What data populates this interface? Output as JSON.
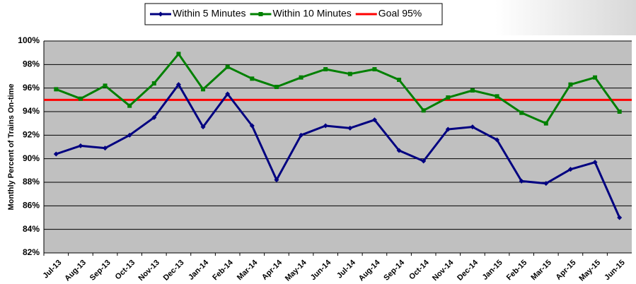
{
  "chart_data": {
    "type": "line",
    "y_label": "Monthly Percent of Trains On-time",
    "categories": [
      "Jul-13",
      "Aug-13",
      "Sep-13",
      "Oct-13",
      "Nov-13",
      "Dec-13",
      "Jan-14",
      "Feb-14",
      "Mar-14",
      "Apr-14",
      "May-14",
      "Jun-14",
      "Jul-14",
      "Aug-14",
      "Sep-14",
      "Oct-14",
      "Nov-14",
      "Dec-14",
      "Jan-15",
      "Feb-15",
      "Mar-15",
      "Apr-15",
      "May-15",
      "Jun-15"
    ],
    "series": [
      {
        "name": "Within 5 Minutes",
        "color": "#000080",
        "marker": "diamond",
        "values": [
          90.4,
          91.1,
          90.9,
          92.0,
          93.5,
          96.3,
          92.7,
          95.5,
          92.8,
          88.2,
          92.0,
          92.8,
          92.6,
          93.3,
          90.7,
          89.8,
          92.5,
          92.7,
          91.6,
          88.1,
          87.9,
          89.1,
          89.7,
          85.0
        ]
      },
      {
        "name": "Within 10 Minutes",
        "color": "#008000",
        "marker": "square",
        "values": [
          95.9,
          95.1,
          96.2,
          94.5,
          96.4,
          98.9,
          95.9,
          97.8,
          96.8,
          96.1,
          96.9,
          97.6,
          97.2,
          97.6,
          96.7,
          94.1,
          95.2,
          95.8,
          95.3,
          93.9,
          93.0,
          96.3,
          96.9,
          94.0
        ]
      }
    ],
    "goal": {
      "name": "Goal 95%",
      "value": 95,
      "color": "#ff0000"
    },
    "ylim": [
      82,
      100
    ],
    "yticks": [
      {
        "value": 82,
        "label": "82%"
      },
      {
        "value": 84,
        "label": "84%"
      },
      {
        "value": 86,
        "label": "86%"
      },
      {
        "value": 88,
        "label": "88%"
      },
      {
        "value": 90,
        "label": "90%"
      },
      {
        "value": 92,
        "label": "92%"
      },
      {
        "value": 94,
        "label": "94%"
      },
      {
        "value": 96,
        "label": "96%"
      },
      {
        "value": 98,
        "label": "98%"
      },
      {
        "value": 100,
        "label": "100%"
      }
    ],
    "grid": true
  }
}
